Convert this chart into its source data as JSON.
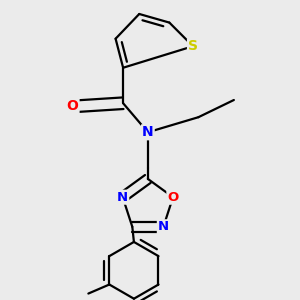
{
  "background_color": "#ebebeb",
  "atom_colors": {
    "S": "#cccc00",
    "O": "#ff0000",
    "N": "#0000ff",
    "C": "#000000"
  },
  "bond_color": "#000000",
  "bond_width": 1.6,
  "figsize": [
    3.0,
    3.0
  ],
  "dpi": 100
}
